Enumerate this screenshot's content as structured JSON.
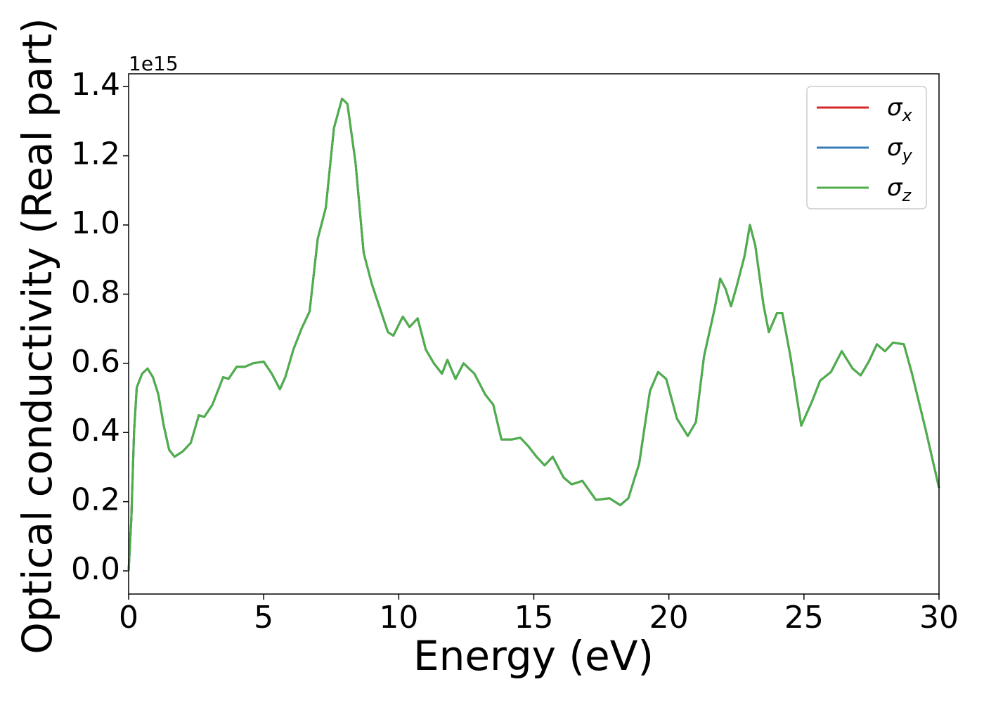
{
  "chart_data": {
    "type": "line",
    "xlabel": "Energy (eV)",
    "ylabel": "Optical conductivity (Real part)",
    "y_offset_label": "1e15",
    "xlim": [
      0,
      30
    ],
    "xticks": [
      0,
      5,
      10,
      15,
      20,
      25,
      30
    ],
    "ylim": [
      -0.067,
      1.437
    ],
    "yticks": [
      {
        "value": 0,
        "label": "0.0"
      },
      0.2,
      0.4,
      0.6,
      0.8,
      {
        "value": 1,
        "label": "1.0"
      },
      1.2,
      1.4
    ],
    "legend": "upper right",
    "grid": false,
    "x": [
      0,
      0.1,
      0.2,
      0.3,
      0.5,
      0.7,
      0.9,
      1.1,
      1.3,
      1.5,
      1.7,
      2.0,
      2.3,
      2.6,
      2.8,
      3.1,
      3.5,
      3.7,
      4.0,
      4.3,
      4.6,
      5.0,
      5.3,
      5.6,
      5.8,
      6.1,
      6.4,
      6.7,
      7.0,
      7.3,
      7.6,
      7.9,
      8.1,
      8.4,
      8.7,
      9.0,
      9.3,
      9.6,
      9.8,
      10.15,
      10.4,
      10.7,
      11.0,
      11.3,
      11.6,
      11.8,
      12.1,
      12.4,
      12.8,
      13.2,
      13.5,
      13.8,
      14.2,
      14.5,
      14.8,
      15.1,
      15.4,
      15.7,
      16.1,
      16.4,
      16.8,
      17.3,
      17.8,
      18.2,
      18.5,
      18.9,
      19.3,
      19.6,
      19.9,
      20.3,
      20.7,
      21.0,
      21.3,
      21.7,
      21.9,
      22.1,
      22.3,
      22.5,
      22.8,
      23.0,
      23.2,
      23.5,
      23.7,
      24.0,
      24.2,
      24.5,
      24.9,
      25.3,
      25.6,
      26.0,
      26.4,
      26.8,
      27.1,
      27.4,
      27.7,
      28.0,
      28.3,
      28.7,
      29.0,
      29.5,
      30.0
    ],
    "series": [
      {
        "name": "σx",
        "color": "#d62728",
        "values": [
          0,
          0.15,
          0.4,
          0.53,
          0.57,
          0.585,
          0.56,
          0.51,
          0.42,
          0.35,
          0.33,
          0.345,
          0.37,
          0.45,
          0.445,
          0.48,
          0.56,
          0.555,
          0.59,
          0.59,
          0.6,
          0.605,
          0.57,
          0.525,
          0.56,
          0.64,
          0.7,
          0.75,
          0.96,
          1.05,
          1.28,
          1.365,
          1.35,
          1.18,
          0.92,
          0.83,
          0.76,
          0.69,
          0.68,
          0.735,
          0.705,
          0.73,
          0.64,
          0.6,
          0.57,
          0.61,
          0.555,
          0.6,
          0.57,
          0.51,
          0.48,
          0.38,
          0.38,
          0.385,
          0.36,
          0.33,
          0.305,
          0.33,
          0.27,
          0.25,
          0.26,
          0.205,
          0.21,
          0.19,
          0.21,
          0.31,
          0.52,
          0.575,
          0.555,
          0.44,
          0.39,
          0.43,
          0.62,
          0.76,
          0.845,
          0.815,
          0.765,
          0.82,
          0.91,
          1.0,
          0.94,
          0.77,
          0.69,
          0.745,
          0.745,
          0.62,
          0.42,
          0.49,
          0.55,
          0.575,
          0.635,
          0.585,
          0.565,
          0.605,
          0.655,
          0.635,
          0.66,
          0.655,
          0.57,
          0.41,
          0.24
        ]
      },
      {
        "name": "σy",
        "color": "#377eb8",
        "values": [
          0,
          0.15,
          0.4,
          0.53,
          0.57,
          0.585,
          0.56,
          0.51,
          0.42,
          0.35,
          0.33,
          0.345,
          0.37,
          0.45,
          0.445,
          0.48,
          0.56,
          0.555,
          0.59,
          0.59,
          0.6,
          0.605,
          0.57,
          0.525,
          0.56,
          0.64,
          0.7,
          0.75,
          0.96,
          1.05,
          1.28,
          1.365,
          1.35,
          1.18,
          0.92,
          0.83,
          0.76,
          0.69,
          0.68,
          0.735,
          0.705,
          0.73,
          0.64,
          0.6,
          0.57,
          0.61,
          0.555,
          0.6,
          0.57,
          0.51,
          0.48,
          0.38,
          0.38,
          0.385,
          0.36,
          0.33,
          0.305,
          0.33,
          0.27,
          0.25,
          0.26,
          0.205,
          0.21,
          0.19,
          0.21,
          0.31,
          0.52,
          0.575,
          0.555,
          0.44,
          0.39,
          0.43,
          0.62,
          0.76,
          0.845,
          0.815,
          0.765,
          0.82,
          0.91,
          1.0,
          0.94,
          0.77,
          0.69,
          0.745,
          0.745,
          0.62,
          0.42,
          0.49,
          0.55,
          0.575,
          0.635,
          0.585,
          0.565,
          0.605,
          0.655,
          0.635,
          0.66,
          0.655,
          0.57,
          0.41,
          0.24
        ]
      },
      {
        "name": "σz",
        "color": "#4daf4a",
        "values": [
          0,
          0.15,
          0.4,
          0.53,
          0.57,
          0.585,
          0.56,
          0.51,
          0.42,
          0.35,
          0.33,
          0.345,
          0.37,
          0.45,
          0.445,
          0.48,
          0.56,
          0.555,
          0.59,
          0.59,
          0.6,
          0.605,
          0.57,
          0.525,
          0.56,
          0.64,
          0.7,
          0.75,
          0.96,
          1.05,
          1.28,
          1.365,
          1.35,
          1.18,
          0.92,
          0.83,
          0.76,
          0.69,
          0.68,
          0.735,
          0.705,
          0.73,
          0.64,
          0.6,
          0.57,
          0.61,
          0.555,
          0.6,
          0.57,
          0.51,
          0.48,
          0.38,
          0.38,
          0.385,
          0.36,
          0.33,
          0.305,
          0.33,
          0.27,
          0.25,
          0.26,
          0.205,
          0.21,
          0.19,
          0.21,
          0.31,
          0.52,
          0.575,
          0.555,
          0.44,
          0.39,
          0.43,
          0.62,
          0.76,
          0.845,
          0.815,
          0.765,
          0.82,
          0.91,
          1.0,
          0.94,
          0.77,
          0.69,
          0.745,
          0.745,
          0.62,
          0.42,
          0.49,
          0.55,
          0.575,
          0.635,
          0.585,
          0.565,
          0.605,
          0.655,
          0.635,
          0.66,
          0.655,
          0.57,
          0.41,
          0.24
        ]
      }
    ]
  }
}
